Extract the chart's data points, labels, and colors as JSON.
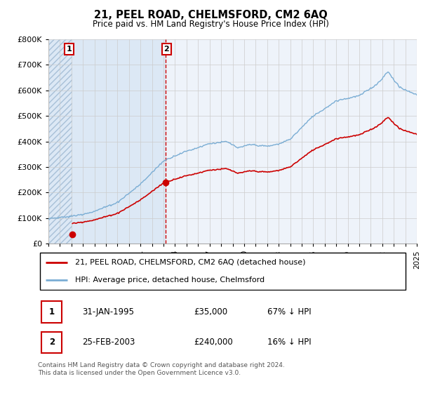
{
  "title": "21, PEEL ROAD, CHELMSFORD, CM2 6AQ",
  "subtitle": "Price paid vs. HM Land Registry's House Price Index (HPI)",
  "ylim": [
    0,
    800000
  ],
  "yticks": [
    0,
    100000,
    200000,
    300000,
    400000,
    500000,
    600000,
    700000,
    800000
  ],
  "sale1_date": 1995.08,
  "sale1_price": 35000,
  "sale2_date": 2003.15,
  "sale2_price": 240000,
  "hpi_color": "#7aadd4",
  "price_color": "#cc0000",
  "vline_color": "#cc0000",
  "grid_color": "#cccccc",
  "bg_main": "#eef3fa",
  "bg_hatch_color": "#d8e4f0",
  "legend_label1": "21, PEEL ROAD, CHELMSFORD, CM2 6AQ (detached house)",
  "legend_label2": "HPI: Average price, detached house, Chelmsford",
  "table_row1": [
    "1",
    "31-JAN-1995",
    "£35,000",
    "67% ↓ HPI"
  ],
  "table_row2": [
    "2",
    "25-FEB-2003",
    "£240,000",
    "16% ↓ HPI"
  ],
  "footnote": "Contains HM Land Registry data © Crown copyright and database right 2024.\nThis data is licensed under the Open Government Licence v3.0.",
  "xmin": 1993,
  "xmax": 2025
}
